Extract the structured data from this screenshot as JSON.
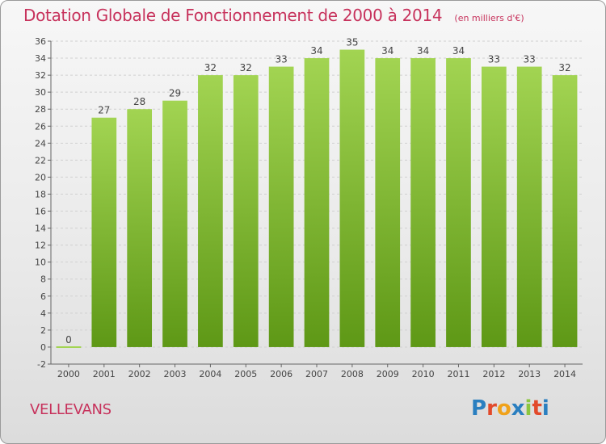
{
  "header": {
    "title": "Dotation Globale de Fonctionnement de 2000 à 2014",
    "unit": "(en milliers d'€)"
  },
  "commune": "VELLEVANS",
  "logo": {
    "text": "Proxiti",
    "letter_colors": [
      "#2a7fc0",
      "#e24a2b",
      "#f0a21a",
      "#2a7fc0",
      "#8cc63f",
      "#e24a2b",
      "#2a7fc0"
    ]
  },
  "colors": {
    "bar_top": "#a2d452",
    "bar_bottom": "#5e9816",
    "accent": "#c7325c",
    "grid": "#d0d0d0"
  },
  "chart_data": {
    "type": "bar",
    "categories": [
      "2000",
      "2001",
      "2002",
      "2003",
      "2004",
      "2005",
      "2006",
      "2007",
      "2008",
      "2009",
      "2010",
      "2011",
      "2012",
      "2013",
      "2014"
    ],
    "values": [
      0,
      27,
      28,
      29,
      32,
      32,
      33,
      34,
      35,
      34,
      34,
      34,
      33,
      33,
      32
    ],
    "ylim": [
      -2,
      36
    ],
    "yticks": [
      -2,
      0,
      2,
      4,
      6,
      8,
      10,
      12,
      14,
      16,
      18,
      20,
      22,
      24,
      26,
      28,
      30,
      32,
      34,
      36
    ],
    "grid": "horizontal dashed",
    "data_labels": true
  }
}
